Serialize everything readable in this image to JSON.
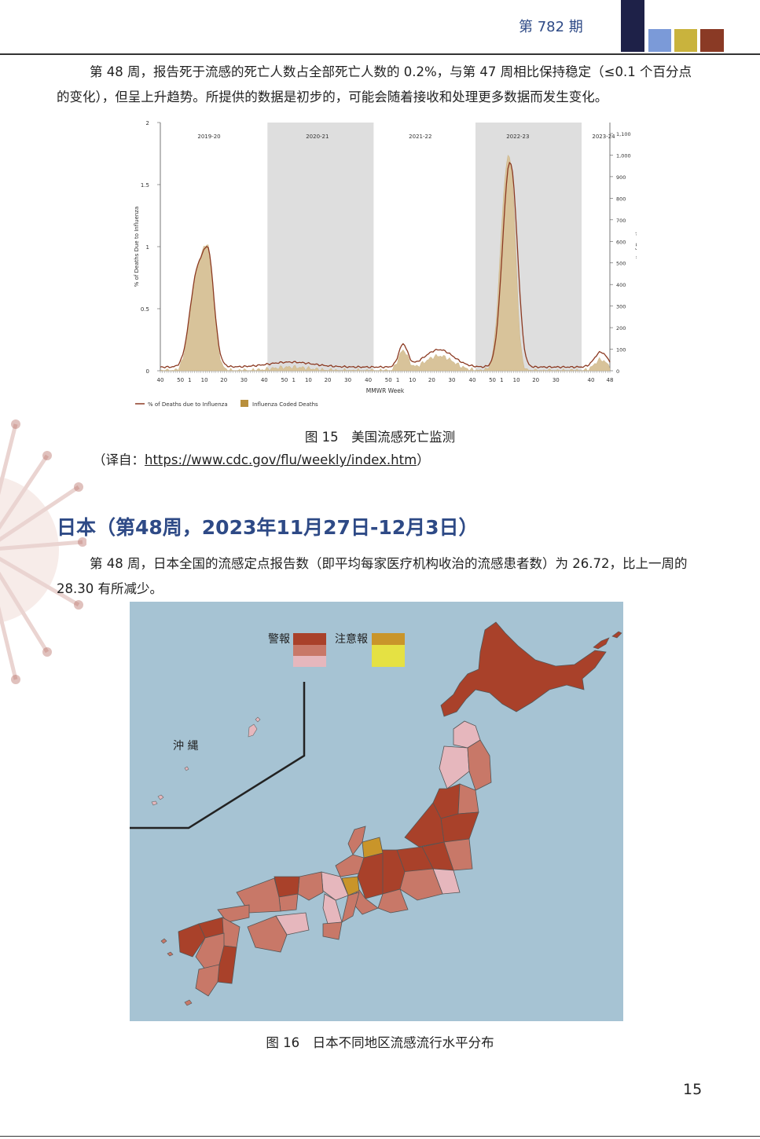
{
  "header": {
    "issue": "第 782 期",
    "colors": [
      "#1e2148",
      "#7b9ad8",
      "#c9b33d",
      "#8a3a25"
    ]
  },
  "para1": "第 48 周，报告死于流感的死亡人数占全部死亡人数的 0.2%，与第 47 周相比保持稳定（≤0.1 个百分点的变化），但呈上升趋势。所提供的数据是初步的，可能会随着接收和处理更多数据而发生变化。",
  "chart_data": {
    "type": "area",
    "seasons": [
      "2019-20",
      "2020-21",
      "2021-22",
      "2022-23",
      "2023-24"
    ],
    "shaded_seasons": [
      "2020-21",
      "2022-23"
    ],
    "ylabel_left": "% of Deaths Due to Influenza",
    "ylabel_right": "# of Deaths",
    "xlabel": "MMWR Week",
    "y_left_ticks": [
      "2",
      "1.5",
      "1",
      "0.5",
      "0"
    ],
    "y_right_ticks": [
      "1,100",
      "1,000",
      "900",
      "800",
      "700",
      "600",
      "500",
      "400",
      "300",
      "200",
      "100",
      "0"
    ],
    "x_ticks": [
      "40",
      "50",
      "1",
      "10",
      "20",
      "30",
      "40",
      "50",
      "1",
      "10",
      "20",
      "30",
      "40",
      "50",
      "1",
      "10",
      "20",
      "30",
      "40",
      "50",
      "1",
      "10",
      "20",
      "30",
      "40",
      "48"
    ],
    "legend": [
      "% of Deaths due to Influenza",
      "Influenza Coded Deaths"
    ],
    "colors": {
      "line": "#8c3a22",
      "area": "#d8c39a",
      "shade": "#dedede"
    }
  },
  "fig15_caption": "图 15　美国流感死亡监测",
  "source_prefix": "（译自：",
  "source_url": "https://www.cdc.gov/flu/weekly/index.htm",
  "source_suffix": "）",
  "section_title": "日本（第48周，2023年11月27日-12月3日）",
  "para2": "第 48 周，日本全国的流感定点报告数（即平均每家医疗机构收治的流感患者数）为 26.72，比上一周的 28.30 有所减少。",
  "map": {
    "legend_alert": "警報",
    "legend_warning": "注意報",
    "okinawa": "沖 縄",
    "colors": {
      "sea": "#a6c3d3",
      "alert_high": "#a9412a",
      "alert_mid": "#c87868",
      "alert_low": "#e6b7bd",
      "warn_high": "#c9952a",
      "warn_low": "#e5e143"
    }
  },
  "fig16_caption": "图 16　日本不同地区流感流行水平分布",
  "page_number": "15"
}
